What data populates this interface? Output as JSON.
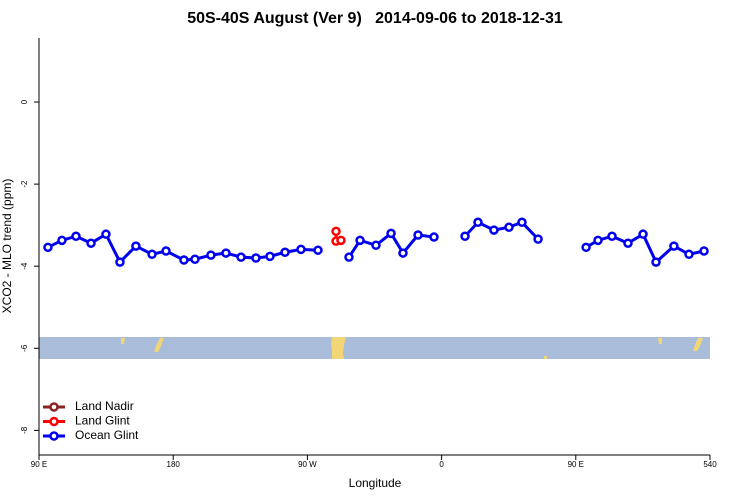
{
  "chart_data": {
    "type": "line",
    "title": "50S-40S August (Ver 9)   2014-09-06 to 2018-12-31",
    "xlabel": "Longitude",
    "ylabel": "XCO2 - MLO trend (ppm)",
    "xlim": [
      90,
      540
    ],
    "xticks": [
      {
        "value": 90,
        "label": "90 E"
      },
      180,
      {
        "value": 270,
        "label": "90 W"
      },
      {
        "value": 360,
        "label": "0"
      },
      {
        "value": 450,
        "label": "90 E"
      },
      540
    ],
    "ylim": [
      -8.6,
      1.56
    ],
    "yticks": [
      0,
      -2,
      -4,
      -6,
      -8
    ],
    "legend": "bottomleft",
    "series": [
      {
        "name": "Land Nadir",
        "color": "#8b2323",
        "x": [],
        "values": []
      },
      {
        "name": "Land Glint",
        "color": "#ff0000",
        "x": [
          289.2,
          289.2,
          292.5
        ],
        "values": [
          -3.15,
          -3.39,
          -3.37
        ]
      },
      {
        "name": "Ocean Glint",
        "color": "#0000ee",
        "x": [
          96.0,
          105.4,
          114.8,
          124.9,
          134.9,
          144.3,
          155.0,
          165.8,
          175.2,
          187.2,
          194.6,
          205.3,
          215.4,
          225.5,
          235.5,
          244.9,
          255.0,
          265.7,
          277.1,
          null,
          297.9,
          305.3,
          316.0,
          326.1,
          334.1,
          344.2,
          354.9,
          null,
          375.7,
          384.4,
          395.1,
          405.2,
          413.9,
          424.7,
          null,
          456.9,
          464.9,
          474.3,
          485.0,
          495.1,
          503.8,
          515.8,
          525.9,
          536.0
        ],
        "values": [
          -3.54,
          -3.37,
          -3.27,
          -3.44,
          -3.22,
          -3.9,
          -3.51,
          -3.71,
          -3.63,
          -3.85,
          -3.83,
          -3.73,
          -3.68,
          -3.78,
          -3.8,
          -3.76,
          -3.66,
          -3.59,
          -3.61,
          null,
          -3.78,
          -3.37,
          -3.49,
          -3.2,
          -3.68,
          -3.24,
          -3.29,
          null,
          -3.27,
          -2.93,
          -3.12,
          -3.05,
          -2.93,
          -3.34,
          null,
          -3.54,
          -3.37,
          -3.27,
          -3.44,
          -3.22,
          -3.9,
          -3.51,
          -3.71,
          -3.63
        ]
      }
    ]
  }
}
